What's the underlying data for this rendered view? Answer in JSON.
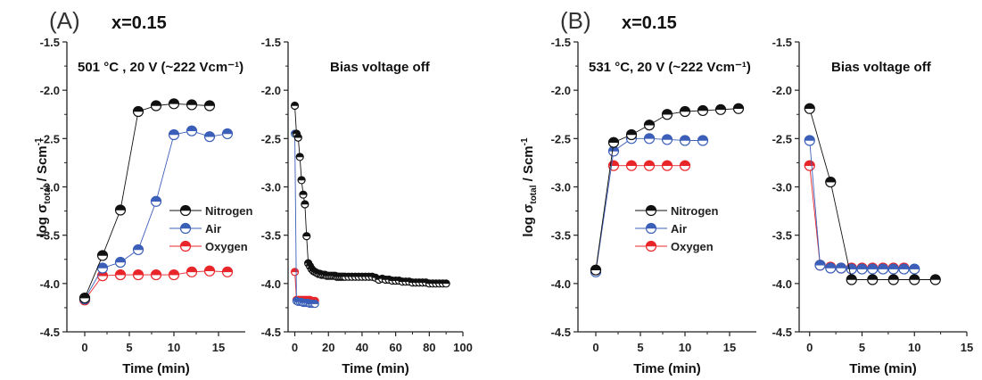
{
  "panels": [
    {
      "label": "(A)",
      "title": "x=0.15"
    },
    {
      "label": "(B)",
      "title": "x=0.15"
    }
  ],
  "colors": {
    "Nitrogen": "#111111",
    "Air": "#3b5fb8",
    "Oxygen": "#e8262a",
    "axis": "#222222"
  },
  "chart_data": [
    {
      "type": "line",
      "panel": "A",
      "annotation": "501 °C , 20 V (~222 Vcm⁻¹)",
      "xlabel": "Time (min)",
      "ylabel": "log σtotal / Scm⁻¹",
      "ylabel_parts": {
        "log": "log σ",
        "sub": "total",
        "unit": "/ Scm",
        "sup": "-1"
      },
      "xlim": [
        -2,
        18
      ],
      "ylim": [
        -4.5,
        -1.5
      ],
      "xticks": [
        0,
        5,
        10,
        15
      ],
      "yticks": [
        -4.5,
        -4.0,
        -3.5,
        -3.0,
        -2.5,
        -2.0,
        -1.5
      ],
      "ytick_labels": [
        "-4.5",
        "-4.0",
        "-3.5",
        "-3.0",
        "-2.5",
        "-2.0",
        "-1.5"
      ],
      "legend_position": "center-right",
      "series": [
        {
          "name": "Nitrogen",
          "x": [
            0,
            2,
            4,
            6,
            8,
            10,
            12,
            14
          ],
          "y": [
            -4.15,
            -3.71,
            -3.24,
            -2.22,
            -2.16,
            -2.14,
            -2.15,
            -2.16
          ]
        },
        {
          "name": "Air",
          "x": [
            0,
            2,
            4,
            6,
            8,
            10,
            12,
            14,
            16
          ],
          "y": [
            -4.16,
            -3.84,
            -3.78,
            -3.65,
            -3.15,
            -2.46,
            -2.42,
            -2.48,
            -2.45
          ]
        },
        {
          "name": "Oxygen",
          "x": [
            0,
            2,
            4,
            6,
            8,
            10,
            12,
            14,
            16
          ],
          "y": [
            -4.17,
            -3.92,
            -3.91,
            -3.91,
            -3.91,
            -3.91,
            -3.88,
            -3.87,
            -3.88
          ]
        }
      ]
    },
    {
      "type": "line",
      "panel": "A-off",
      "annotation": "Bias voltage off",
      "xlabel": "Time (min)",
      "xlim": [
        -4,
        100
      ],
      "ylim": [
        -4.5,
        -1.5
      ],
      "xticks": [
        0,
        20,
        40,
        60,
        80,
        100
      ],
      "yticks": [
        -4.5,
        -4.0,
        -3.5,
        -3.0,
        -2.5,
        -2.0,
        -1.5
      ],
      "ytick_labels": [
        "-4.5",
        "-4.0",
        "-3.5",
        "-3.0",
        "-2.5",
        "-2.0",
        "-1.5"
      ],
      "series": [
        {
          "name": "Nitrogen",
          "x": [
            0,
            1,
            2,
            3,
            4,
            5,
            6,
            7,
            8,
            9,
            10,
            11,
            12,
            13,
            14,
            15,
            16,
            17,
            18,
            19,
            20,
            21,
            22,
            23,
            24,
            25,
            26,
            27,
            28,
            29,
            30,
            32,
            34,
            36,
            38,
            40,
            42,
            44,
            46,
            48,
            50,
            52,
            54,
            56,
            58,
            60,
            62,
            64,
            66,
            68,
            70,
            72,
            74,
            76,
            78,
            80,
            82,
            84,
            86,
            88,
            90
          ],
          "y": [
            -2.16,
            -2.45,
            -2.49,
            -2.69,
            -2.93,
            -3.08,
            -3.18,
            -3.51,
            -3.79,
            -3.82,
            -3.85,
            -3.87,
            -3.88,
            -3.89,
            -3.9,
            -3.9,
            -3.91,
            -3.91,
            -3.91,
            -3.92,
            -3.92,
            -3.92,
            -3.92,
            -3.92,
            -3.92,
            -3.93,
            -3.93,
            -3.93,
            -3.93,
            -3.93,
            -3.93,
            -3.93,
            -3.93,
            -3.93,
            -3.93,
            -3.93,
            -3.93,
            -3.93,
            -3.93,
            -3.94,
            -3.96,
            -3.95,
            -3.96,
            -3.96,
            -3.97,
            -3.97,
            -3.97,
            -3.98,
            -3.98,
            -3.98,
            -3.99,
            -3.99,
            -3.99,
            -3.99,
            -3.99,
            -4.0,
            -4.0,
            -4.0,
            -4.0,
            -4.0,
            -4.0
          ]
        },
        {
          "name": "Air",
          "x": [
            0,
            1,
            2,
            3,
            4,
            5,
            6,
            7,
            8,
            9,
            10,
            11,
            12
          ],
          "y": [
            -2.45,
            -4.18,
            -4.19,
            -4.19,
            -4.19,
            -4.2,
            -4.2,
            -4.2,
            -4.2,
            -4.21,
            -4.21,
            -4.21,
            -4.21
          ]
        },
        {
          "name": "Oxygen",
          "x": [
            0,
            1,
            2,
            3,
            4,
            5,
            6,
            7,
            8,
            9,
            10,
            11,
            12
          ],
          "y": [
            -3.88,
            -4.17,
            -4.17,
            -4.17,
            -4.17,
            -4.17,
            -4.17,
            -4.17,
            -4.17,
            -4.17,
            -4.18,
            -4.18,
            -4.18
          ]
        }
      ]
    },
    {
      "type": "line",
      "panel": "B",
      "annotation": "531 °C, 20 V (~222 Vcm⁻¹)",
      "xlabel": "Time (min)",
      "ylabel": "log σtotal / Scm⁻¹",
      "ylabel_parts": {
        "log": "log σ",
        "sub": "total",
        "unit": "/ Scm",
        "sup": "-1"
      },
      "xlim": [
        -2,
        18
      ],
      "ylim": [
        -4.5,
        -1.5
      ],
      "xticks": [
        0,
        5,
        10,
        15
      ],
      "yticks": [
        -4.5,
        -4.0,
        -3.5,
        -3.0,
        -2.5,
        -2.0,
        -1.5
      ],
      "ytick_labels": [
        "-4.5",
        "-4.0",
        "-3.5",
        "-3.0",
        "-2.5",
        "-2.0",
        "-1.5"
      ],
      "legend_position": "center-right",
      "series": [
        {
          "name": "Nitrogen",
          "x": [
            0,
            2,
            4,
            6,
            8,
            10,
            12,
            14,
            16
          ],
          "y": [
            -3.86,
            -2.54,
            -2.46,
            -2.36,
            -2.25,
            -2.22,
            -2.21,
            -2.2,
            -2.19
          ]
        },
        {
          "name": "Air",
          "x": [
            0,
            2,
            4,
            6,
            8,
            10,
            12
          ],
          "y": [
            -3.88,
            -2.63,
            -2.5,
            -2.5,
            -2.51,
            -2.52,
            -2.52
          ]
        },
        {
          "name": "Oxygen",
          "x": [
            2,
            4,
            6,
            8,
            10
          ],
          "y": [
            -2.78,
            -2.78,
            -2.78,
            -2.78,
            -2.78
          ]
        }
      ]
    },
    {
      "type": "line",
      "panel": "B-off",
      "annotation": "Bias voltage off",
      "xlabel": "Time (min)",
      "xlim": [
        -1,
        15
      ],
      "ylim": [
        -4.5,
        -1.5
      ],
      "xticks": [
        0,
        5,
        10,
        15
      ],
      "yticks": [
        -4.5,
        -4.0,
        -3.5,
        -3.0,
        -2.5,
        -2.0,
        -1.5
      ],
      "ytick_labels": [
        "-4.5",
        "-4.0",
        "-3.5",
        "-3.0",
        "-2.5",
        "-2.0",
        "-1.5"
      ],
      "series": [
        {
          "name": "Nitrogen",
          "x": [
            0,
            2,
            4,
            6,
            8,
            10,
            12
          ],
          "y": [
            -2.19,
            -2.95,
            -3.96,
            -3.96,
            -3.96,
            -3.96,
            -3.96
          ]
        },
        {
          "name": "Air",
          "x": [
            0,
            1,
            2,
            3,
            4,
            5,
            6,
            7,
            8,
            9,
            10
          ],
          "y": [
            -2.52,
            -3.81,
            -3.84,
            -3.84,
            -3.85,
            -3.85,
            -3.85,
            -3.85,
            -3.85,
            -3.85,
            -3.85
          ]
        },
        {
          "name": "Oxygen",
          "x": [
            0,
            1,
            2,
            3,
            4,
            5,
            6,
            7,
            8,
            9
          ],
          "y": [
            -2.78,
            -3.81,
            -3.83,
            -3.84,
            -3.84,
            -3.84,
            -3.84,
            -3.84,
            -3.84,
            -3.84
          ]
        }
      ]
    }
  ]
}
